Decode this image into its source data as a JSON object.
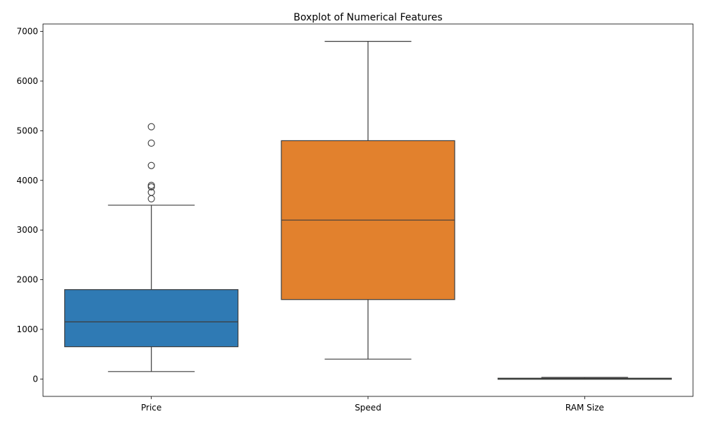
{
  "chart_data": {
    "type": "box",
    "title": "Boxplot of Numerical Features",
    "xlabel": "",
    "ylabel": "",
    "ylim": [
      -350,
      7150
    ],
    "yticks": [
      0,
      1000,
      2000,
      3000,
      4000,
      5000,
      6000,
      7000
    ],
    "categories": [
      "Price",
      "Speed",
      "RAM Size"
    ],
    "colors": {
      "Price": "#2f7ab4",
      "Speed": "#e2812d",
      "RAM Size": "#3a923a"
    },
    "grid": false,
    "legend": "none",
    "boxes": [
      {
        "label": "Price",
        "whisker_low": 150,
        "q1": 650,
        "median": 1150,
        "q3": 1800,
        "whisker_high": 3500,
        "outliers": [
          3630,
          3760,
          3870,
          3900,
          4300,
          4750,
          5080
        ]
      },
      {
        "label": "Speed",
        "whisker_low": 400,
        "q1": 1600,
        "median": 3200,
        "q3": 4800,
        "whisker_high": 6800,
        "outliers": []
      },
      {
        "label": "RAM Size",
        "whisker_low": 2,
        "q1": 4,
        "median": 8,
        "q3": 16,
        "whisker_high": 32,
        "outliers": []
      }
    ]
  }
}
